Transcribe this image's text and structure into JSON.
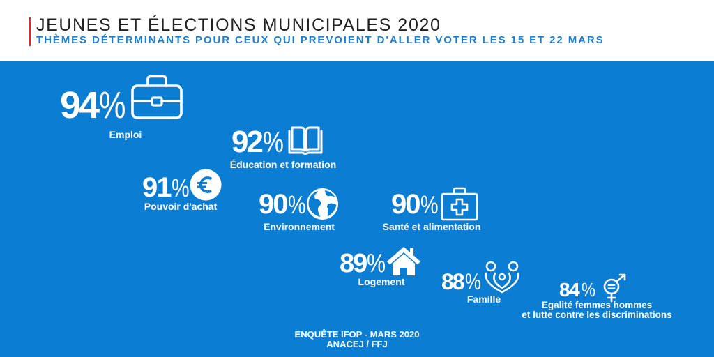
{
  "header": {
    "title": "JEUNES ET ÉLECTIONS MUNICIPALES 2020",
    "subtitle": "THÈMES DÉTERMINANTS POUR CEUX QUI PREVOIENT D'ALLER VOTER LES 15 ET 22 MARS"
  },
  "themes": [
    {
      "value": 94,
      "unit": "%",
      "label": "Emploi",
      "icon": "briefcase-icon"
    },
    {
      "value": 92,
      "unit": "%",
      "label": "Éducation et formation",
      "icon": "book-icon"
    },
    {
      "value": 91,
      "unit": "%",
      "label": "Pouvoir d'achat",
      "icon": "euro-icon"
    },
    {
      "value": 90,
      "unit": "%",
      "label": "Environnement",
      "icon": "globe-icon"
    },
    {
      "value": 90,
      "unit": "%",
      "label": "Santé et alimentation",
      "icon": "medical-kit-icon"
    },
    {
      "value": 89,
      "unit": "%",
      "label": "Logement",
      "icon": "house-icon"
    },
    {
      "value": 88,
      "unit": "%",
      "label": "Famille",
      "icon": "family-icon"
    },
    {
      "value": 84,
      "unit": "%",
      "label_lines": [
        "Egalité femmes hommes",
        "et lutte contre les discriminations"
      ],
      "icon": "gender-equality-icon"
    }
  ],
  "footer": {
    "lines": [
      "ENQUÊTE IFOP - MARS 2020",
      "ANACEJ / FFJ"
    ]
  },
  "colors": {
    "background_blue": "#0b7ed3",
    "accent_red": "#e3262b",
    "subtitle_blue": "#1a80d2",
    "title_text": "#222222",
    "foreground": "#ffffff"
  }
}
